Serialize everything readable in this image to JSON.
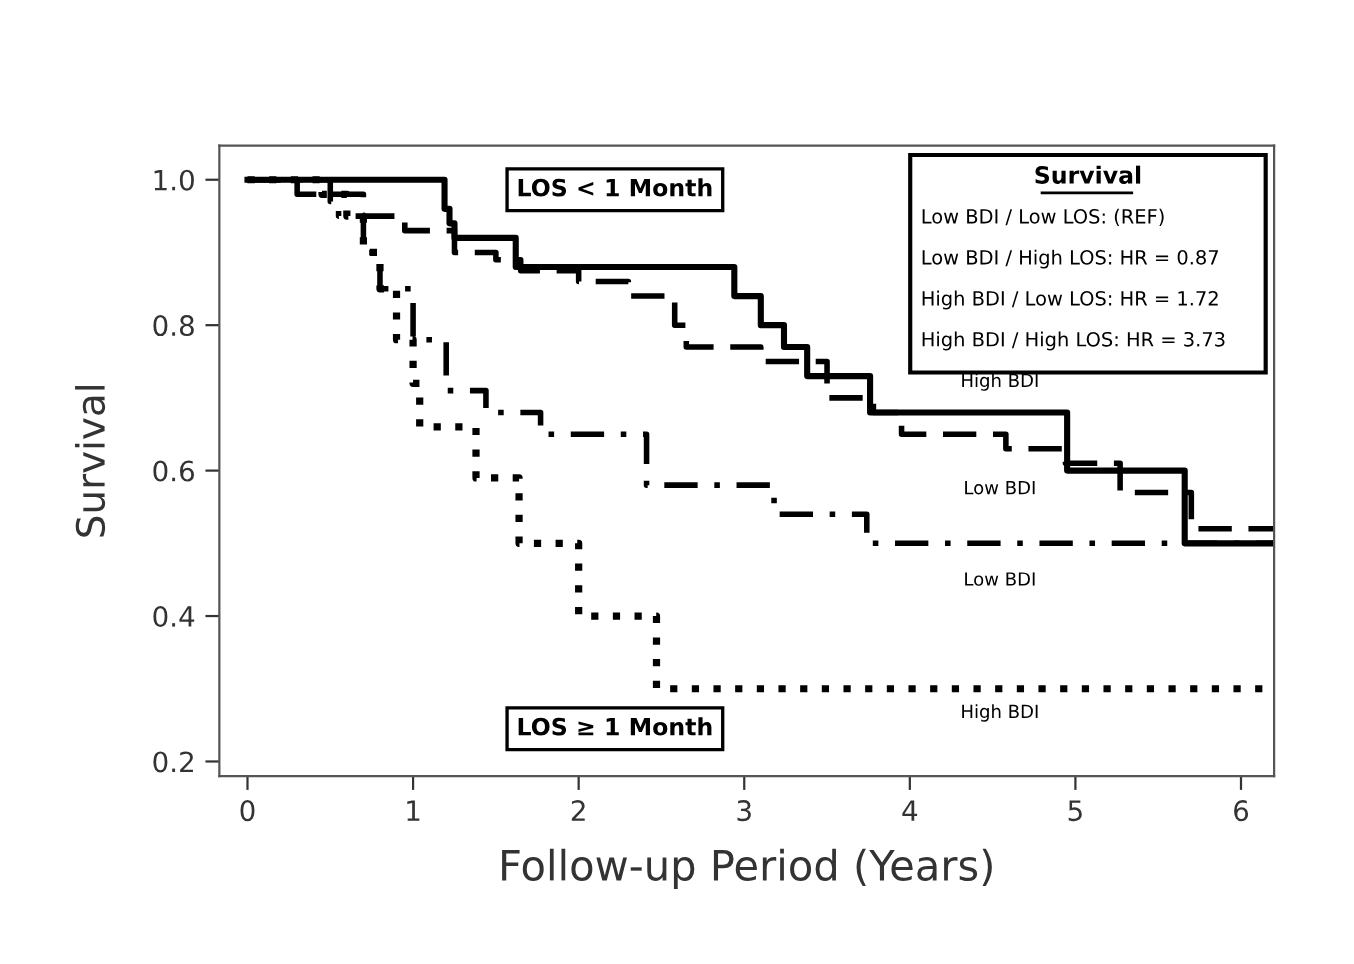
{
  "chart_data": {
    "type": "step",
    "xlabel": "Follow-up Period (Years)",
    "ylabel": "Survival",
    "xlim": [
      -0.17,
      6.2
    ],
    "ylim": [
      0.18,
      1.047
    ],
    "xticks": [
      0,
      1,
      2,
      3,
      4,
      5,
      6
    ],
    "yticks": [
      {
        "value": 0.2,
        "label": "0.2"
      },
      {
        "value": 0.4,
        "label": "0.4"
      },
      {
        "value": 0.6,
        "label": "0.6"
      },
      {
        "value": 0.8,
        "label": "0.8"
      },
      {
        "value": 1.0,
        "label": "1.0"
      }
    ],
    "grid": false,
    "legend": false,
    "marker": "none",
    "series": [
      {
        "color": "#000000",
        "line_style": "solid",
        "x": [
          0,
          1.19,
          1.22,
          1.25,
          1.62,
          2.94,
          3.1,
          3.24,
          3.38,
          3.76,
          4.95,
          5.66,
          6.2
        ],
        "values": [
          1.0,
          0.96,
          0.94,
          0.92,
          0.88,
          0.84,
          0.8,
          0.77,
          0.73,
          0.68,
          0.6,
          0.5,
          0.5
        ]
      },
      {
        "color": "#000000",
        "line_style": "dashed",
        "x": [
          0,
          0.3,
          0.7,
          0.95,
          1.25,
          1.5,
          1.65,
          2.0,
          2.3,
          2.58,
          2.65,
          3.1,
          3.5,
          3.78,
          3.95,
          4.58,
          4.94,
          5.27,
          5.7,
          6.2
        ],
        "values": [
          1.0,
          0.98,
          0.95,
          0.93,
          0.9,
          0.89,
          0.875,
          0.86,
          0.84,
          0.8,
          0.77,
          0.75,
          0.7,
          0.68,
          0.65,
          0.63,
          0.61,
          0.57,
          0.52,
          0.52
        ]
      },
      {
        "color": "#000000",
        "line_style": "dashdot",
        "x": [
          0,
          0.5,
          0.55,
          0.7,
          0.8,
          1.0,
          1.2,
          1.44,
          1.77,
          2.41,
          3.18,
          3.74,
          6.2
        ],
        "values": [
          1.0,
          0.97,
          0.95,
          0.9,
          0.85,
          0.78,
          0.71,
          0.68,
          0.65,
          0.58,
          0.54,
          0.5,
          0.5
        ]
      },
      {
        "color": "#000000",
        "line_style": "dotted",
        "x": [
          0,
          0.45,
          0.6,
          0.7,
          0.8,
          0.9,
          1.0,
          1.04,
          1.38,
          1.64,
          2.0,
          2.47,
          6.2
        ],
        "values": [
          1.0,
          0.98,
          0.95,
          0.9,
          0.85,
          0.78,
          0.72,
          0.66,
          0.59,
          0.5,
          0.4,
          0.3,
          0.3
        ]
      }
    ],
    "annotations": [
      "LOS < 1 Month",
      "LOS ≥ 1 Month",
      "Survival",
      "Low BDI / Low LOS: (REF)",
      "Low BDI / High LOS: HR = 0.87",
      "High BDI / Low LOS: HR = 1.72",
      "High BDI / High LOS: HR = 3.73",
      "High BDI",
      "Low BDI",
      "Low BDI",
      "High BDI"
    ]
  }
}
